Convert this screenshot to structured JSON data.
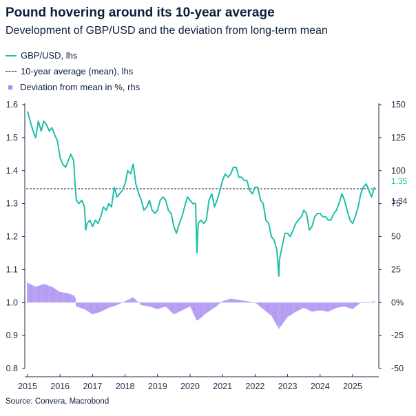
{
  "title": "Pound hovering around its 10-year average",
  "subtitle": "Development of GBP/USD and the deviation from long-term mean",
  "source": "Source: Convera, Macrobond",
  "colors": {
    "gbpusd": "#1ebfa8",
    "mean": "#1f2b48",
    "deviation": "#a78bf0",
    "axis_text": "#1f2b48"
  },
  "legend": [
    {
      "label": "GBP/USD, lhs",
      "swatch": "line"
    },
    {
      "label": "10-year average (mean), lhs",
      "swatch": "dash"
    },
    {
      "label": "Deviation from mean in %, rhs",
      "swatch": "dot"
    }
  ],
  "chart_data": {
    "type": "line",
    "x_ticks": [
      "2015",
      "2016",
      "2017",
      "2018",
      "2019",
      "2020",
      "2021",
      "2022",
      "2023",
      "2024",
      "2025"
    ],
    "left_axis": {
      "ticks": [
        "1.6",
        "1.5",
        "1.4",
        "1.3",
        "1.2",
        "1.1",
        "1.0",
        "0.9",
        "0.8"
      ],
      "ylim": [
        0.8,
        1.6
      ]
    },
    "right_axis": {
      "ticks": [
        "150",
        "125",
        "100",
        "75",
        "50",
        "25",
        "0%",
        "-25",
        "-50"
      ],
      "ylim": [
        -50,
        150
      ]
    },
    "end_labels": {
      "last_value": "1.35",
      "mean_value": "1.34"
    },
    "mean_value": 1.345,
    "series": [
      {
        "name": "GBP/USD, lhs",
        "axis": "left",
        "x": [
          2015.0,
          2015.08,
          2015.17,
          2015.25,
          2015.33,
          2015.42,
          2015.5,
          2015.58,
          2015.67,
          2015.75,
          2015.83,
          2015.92,
          2016.0,
          2016.08,
          2016.17,
          2016.25,
          2016.33,
          2016.42,
          2016.46,
          2016.5,
          2016.58,
          2016.67,
          2016.75,
          2016.79,
          2016.83,
          2016.92,
          2017.0,
          2017.08,
          2017.17,
          2017.25,
          2017.33,
          2017.42,
          2017.5,
          2017.58,
          2017.67,
          2017.75,
          2017.83,
          2017.92,
          2018.0,
          2018.08,
          2018.17,
          2018.25,
          2018.33,
          2018.42,
          2018.5,
          2018.58,
          2018.67,
          2018.75,
          2018.83,
          2018.92,
          2019.0,
          2019.08,
          2019.17,
          2019.25,
          2019.33,
          2019.42,
          2019.5,
          2019.58,
          2019.67,
          2019.75,
          2019.83,
          2019.92,
          2020.0,
          2020.08,
          2020.17,
          2020.21,
          2020.25,
          2020.33,
          2020.42,
          2020.5,
          2020.58,
          2020.67,
          2020.75,
          2020.83,
          2020.92,
          2021.0,
          2021.08,
          2021.17,
          2021.25,
          2021.33,
          2021.42,
          2021.5,
          2021.58,
          2021.67,
          2021.75,
          2021.83,
          2021.92,
          2022.0,
          2022.08,
          2022.17,
          2022.25,
          2022.33,
          2022.42,
          2022.5,
          2022.58,
          2022.67,
          2022.73,
          2022.75,
          2022.83,
          2022.92,
          2023.0,
          2023.08,
          2023.17,
          2023.25,
          2023.33,
          2023.42,
          2023.5,
          2023.58,
          2023.67,
          2023.75,
          2023.83,
          2023.92,
          2024.0,
          2024.08,
          2024.17,
          2024.25,
          2024.33,
          2024.42,
          2024.5,
          2024.58,
          2024.67,
          2024.75,
          2024.83,
          2024.92,
          2025.0,
          2025.08,
          2025.17,
          2025.25,
          2025.33,
          2025.42,
          2025.5,
          2025.58,
          2025.67
        ],
        "values": [
          1.58,
          1.55,
          1.52,
          1.5,
          1.55,
          1.52,
          1.55,
          1.54,
          1.52,
          1.53,
          1.51,
          1.49,
          1.44,
          1.42,
          1.41,
          1.43,
          1.45,
          1.43,
          1.36,
          1.31,
          1.3,
          1.31,
          1.29,
          1.22,
          1.24,
          1.25,
          1.23,
          1.25,
          1.24,
          1.26,
          1.29,
          1.28,
          1.3,
          1.29,
          1.35,
          1.32,
          1.33,
          1.34,
          1.36,
          1.4,
          1.39,
          1.42,
          1.36,
          1.33,
          1.31,
          1.28,
          1.29,
          1.31,
          1.28,
          1.27,
          1.28,
          1.31,
          1.32,
          1.31,
          1.28,
          1.27,
          1.23,
          1.21,
          1.24,
          1.26,
          1.29,
          1.32,
          1.31,
          1.3,
          1.3,
          1.15,
          1.24,
          1.25,
          1.24,
          1.25,
          1.31,
          1.33,
          1.29,
          1.31,
          1.34,
          1.37,
          1.39,
          1.38,
          1.39,
          1.41,
          1.41,
          1.38,
          1.38,
          1.37,
          1.37,
          1.34,
          1.33,
          1.35,
          1.35,
          1.31,
          1.3,
          1.25,
          1.24,
          1.2,
          1.19,
          1.16,
          1.08,
          1.13,
          1.17,
          1.21,
          1.21,
          1.2,
          1.22,
          1.24,
          1.25,
          1.26,
          1.28,
          1.27,
          1.22,
          1.23,
          1.26,
          1.27,
          1.27,
          1.26,
          1.26,
          1.25,
          1.25,
          1.27,
          1.28,
          1.3,
          1.33,
          1.31,
          1.28,
          1.25,
          1.24,
          1.26,
          1.29,
          1.33,
          1.35,
          1.36,
          1.34,
          1.32,
          1.35
        ]
      },
      {
        "name": "Deviation from mean in %, rhs",
        "axis": "right",
        "x": [
          2015.0,
          2015.25,
          2015.5,
          2015.75,
          2016.0,
          2016.25,
          2016.46,
          2016.5,
          2016.75,
          2017.0,
          2017.25,
          2017.5,
          2017.75,
          2018.0,
          2018.25,
          2018.5,
          2018.75,
          2019.0,
          2019.25,
          2019.5,
          2019.75,
          2020.0,
          2020.21,
          2020.5,
          2020.75,
          2021.0,
          2021.25,
          2021.5,
          2021.75,
          2022.0,
          2022.25,
          2022.5,
          2022.73,
          2023.0,
          2023.25,
          2023.5,
          2023.75,
          2024.0,
          2024.25,
          2024.5,
          2024.75,
          2025.0,
          2025.25,
          2025.5,
          2025.67
        ],
        "values": [
          15,
          12,
          14,
          12,
          8,
          7,
          5,
          -3,
          -5,
          -9,
          -7,
          -4,
          -2,
          1,
          4,
          -2,
          -3,
          -5,
          -3,
          -9,
          -6,
          -3,
          -14,
          -8,
          -4,
          1,
          3,
          2,
          1,
          0,
          -5,
          -10,
          -20,
          -11,
          -7,
          -4,
          -7,
          -6,
          -7,
          -4,
          -3,
          -5,
          0,
          0,
          1
        ]
      }
    ]
  }
}
